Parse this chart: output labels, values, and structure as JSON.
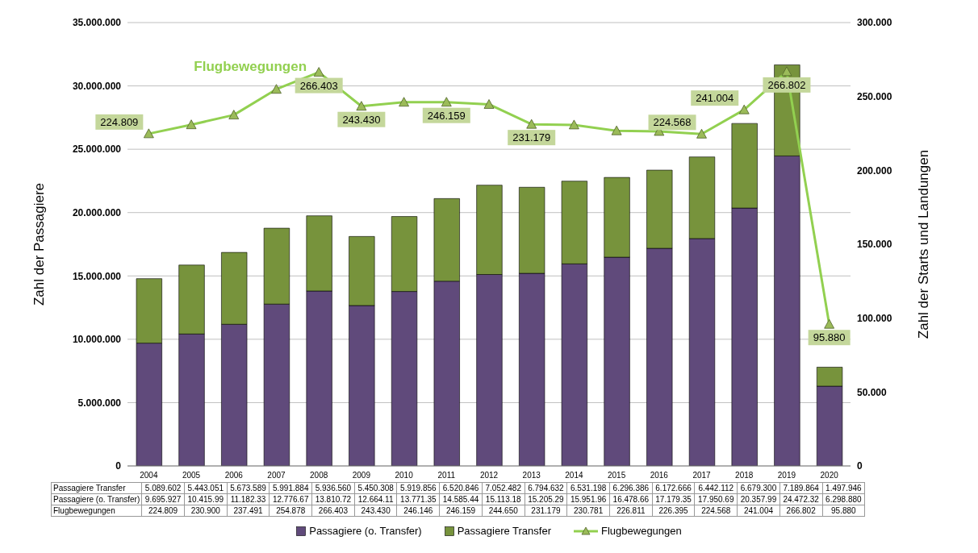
{
  "chart_data": {
    "type": "bar",
    "stacked": true,
    "ylabel": "Zahl der Passagiere",
    "y2label": "Zahl der Starts und Landungen",
    "categories": [
      "2004",
      "2005",
      "2006",
      "2007",
      "2008",
      "2009",
      "2010",
      "2011",
      "2012",
      "2013",
      "2014",
      "2015",
      "2016",
      "2017",
      "2018",
      "2019",
      "2020"
    ],
    "series": [
      {
        "name": "Passagiere (o. Transfer)",
        "color": "#604a7b",
        "values": [
          9695927,
          10415990,
          11182330,
          12776670,
          13810720,
          12664110,
          13771350,
          14585440,
          15113180,
          15205290,
          15951960,
          16478660,
          17179350,
          17950690,
          20357990,
          24472320,
          6298880
        ],
        "value_labels": [
          "9.695.927",
          "10.415.99",
          "11.182.33",
          "12.776.67",
          "13.810.72",
          "12.664.11",
          "13.771.35",
          "14.585.44",
          "15.113.18",
          "15.205.29",
          "15.951.96",
          "16.478.66",
          "17.179.35",
          "17.950.69",
          "20.357.99",
          "24.472.32",
          "6.298.880"
        ]
      },
      {
        "name": "Passagiere Transfer",
        "color": "#77933c",
        "values": [
          5089602,
          5443051,
          5673589,
          5991884,
          5936560,
          5450308,
          5919856,
          6520846,
          7052482,
          6794632,
          6531198,
          6296386,
          6172666,
          6442112,
          6679300,
          7189864,
          1497946
        ],
        "value_labels": [
          "5.089.602",
          "5.443.051",
          "5.673.589",
          "5.991.884",
          "5.936.560",
          "5.450.308",
          "5.919.856",
          "6.520.846",
          "7.052.482",
          "6.794.632",
          "6.531.198",
          "6.296.386",
          "6.172.666",
          "6.442.112",
          "6.679.300",
          "7.189.864",
          "1.497.946"
        ]
      },
      {
        "name": "Flugbewegungen",
        "type": "line",
        "axis": "y2",
        "color": "#92d050",
        "marker": "triangle",
        "values": [
          224809,
          230900,
          237491,
          254878,
          266403,
          243430,
          246146,
          246159,
          244650,
          231179,
          230781,
          226811,
          226395,
          224568,
          241004,
          266802,
          95880
        ],
        "value_labels": [
          "224.809",
          "230.900",
          "237.491",
          "254.878",
          "266.403",
          "243.430",
          "246.146",
          "246.159",
          "244.650",
          "231.179",
          "230.781",
          "226.811",
          "226.395",
          "224.568",
          "241.004",
          "266.802",
          "95.880"
        ]
      }
    ],
    "ylim": [
      0,
      35000000
    ],
    "yticks": [
      {
        "value": 0,
        "label": "0"
      },
      {
        "value": 5000000,
        "label": "5.000.000"
      },
      {
        "value": 10000000,
        "label": "10.000.000"
      },
      {
        "value": 15000000,
        "label": "15.000.000"
      },
      {
        "value": 20000000,
        "label": "20.000.000"
      },
      {
        "value": 25000000,
        "label": "25.000.000"
      },
      {
        "value": 30000000,
        "label": "30.000.000"
      },
      {
        "value": 35000000,
        "label": "35.000.000"
      }
    ],
    "y2lim": [
      0,
      300000
    ],
    "y2ticks": [
      {
        "value": 0,
        "label": "0"
      },
      {
        "value": 50000,
        "label": "50.000"
      },
      {
        "value": 100000,
        "label": "100.000"
      },
      {
        "value": 150000,
        "label": "150.000"
      },
      {
        "value": 200000,
        "label": "200.000"
      },
      {
        "value": 250000,
        "label": "250.000"
      },
      {
        "value": 300000,
        "label": "300.000"
      }
    ],
    "annotations": [
      "224.809",
      "266.403",
      "243.430",
      "246.159",
      "231.179",
      "224.568",
      "241.004",
      "266.802",
      "95.880"
    ],
    "grid": "y",
    "legend": "bottom"
  }
}
